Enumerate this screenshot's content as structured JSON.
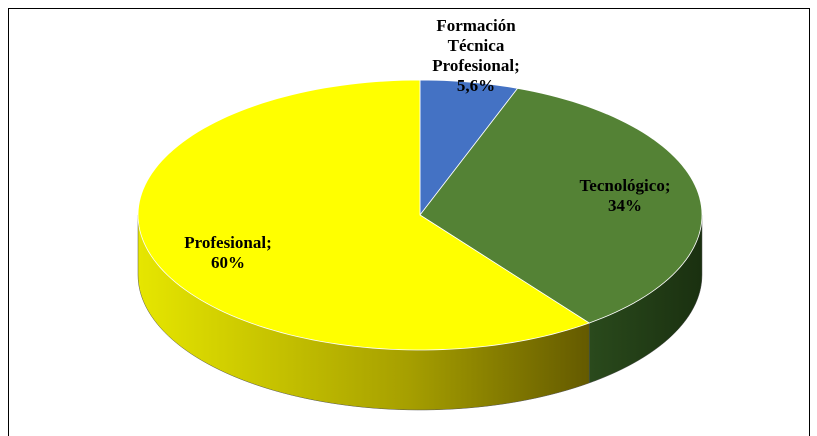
{
  "chart_data": {
    "type": "pie3d",
    "categories": [
      "Formación Técnica Profesional",
      "Tecnológico",
      "Profesional"
    ],
    "values": [
      5.6,
      34,
      60
    ],
    "value_labels": [
      "5,6%",
      "34%",
      "60%"
    ],
    "separator": ";",
    "colors": [
      "#4472c4",
      "#548235",
      "#ffff00"
    ]
  }
}
